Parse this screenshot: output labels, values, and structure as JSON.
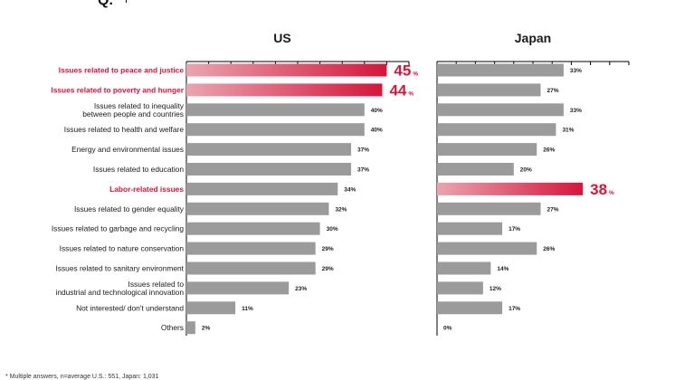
{
  "chart_data": {
    "type": "bar",
    "orientation": "horizontal",
    "categories": [
      "Issues related to peace and justice",
      "Issues related to poverty and hunger",
      "Issues related to inequality\nbetween people and countries",
      "Issues related to health and welfare",
      "Energy and environmental issues",
      "Issues related to education",
      "Labor-related issues",
      "Issues related to gender equality",
      "Issues related to garbage and recycling",
      "Issues related to nature conservation",
      "Issues related to sanitary environment",
      "Issues related to\nindustrial and technological innovation",
      "Not interested/ don't understand",
      "Others"
    ],
    "highlight_categories": [
      0,
      1,
      6
    ],
    "series": [
      {
        "name": "US",
        "values": [
          45,
          44,
          40,
          40,
          37,
          37,
          34,
          32,
          30,
          29,
          29,
          23,
          11,
          2
        ],
        "labels": [
          "45",
          "44",
          "40%",
          "40%",
          "37%",
          "37%",
          "34%",
          "32%",
          "30%",
          "29%",
          "29%",
          "23%",
          "11%",
          "2%"
        ],
        "highlight_bars": [
          0,
          1
        ]
      },
      {
        "name": "Japan",
        "values": [
          33,
          27,
          33,
          31,
          26,
          20,
          38,
          27,
          17,
          26,
          14,
          12,
          17,
          0
        ],
        "labels": [
          "33%",
          "27%",
          "33%",
          "31%",
          "26%",
          "20%",
          "38",
          "27%",
          "17%",
          "26%",
          "14%",
          "12%",
          "17%",
          "0%"
        ],
        "highlight_bars": [
          6
        ]
      }
    ],
    "big_label_unit": "%",
    "xlim": [
      0,
      50
    ],
    "tick_step": 5,
    "colors": {
      "bar": "#9b9b9b",
      "highlight_start": "#eaa4b0",
      "highlight_end": "#d5163b",
      "highlight_text": "#d5163b",
      "text": "#1a1a1a",
      "axis": "#000000"
    }
  },
  "header": {
    "text": "Q."
  },
  "footnote": "* Multiple answers, n=average U.S.: 551, Japan: 1,031"
}
